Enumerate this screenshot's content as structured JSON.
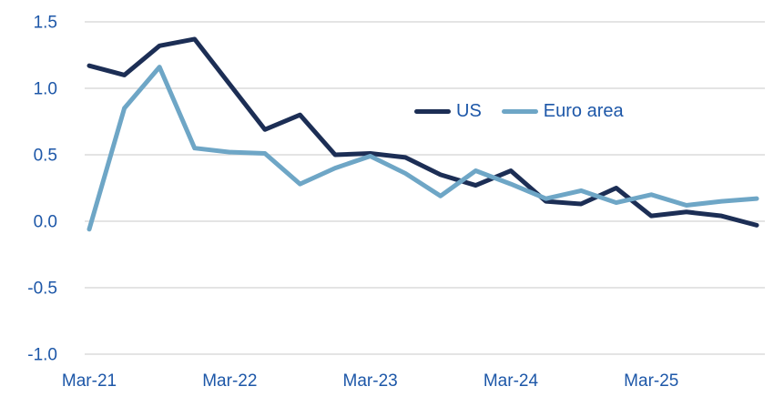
{
  "chart_data": {
    "type": "line",
    "title": "",
    "xlabel": "",
    "ylabel": "",
    "categories": [
      "Mar-21",
      "Jun-21",
      "Sep-21",
      "Dec-21",
      "Mar-22",
      "Jun-22",
      "Sep-22",
      "Dec-22",
      "Mar-23",
      "Jun-23",
      "Sep-23",
      "Dec-23",
      "Mar-24",
      "Jun-24",
      "Sep-24",
      "Dec-24",
      "Mar-25",
      "Jun-25",
      "Sep-25",
      "Dec-25"
    ],
    "x_axis": {
      "visible_tick_labels": [
        "Mar-21",
        "Mar-22",
        "Mar-23",
        "Mar-24",
        "Mar-25"
      ],
      "tick_every": 4
    },
    "y_axis": {
      "ticks": [
        1.5,
        1.0,
        0.5,
        0.0,
        -0.5,
        -1.0
      ],
      "tick_labels": [
        "1.5",
        "1.0",
        "0.5",
        "0.0",
        "-0.5",
        "-1.0"
      ],
      "range": [
        -1.0,
        1.5
      ]
    },
    "grid": {
      "horizontal": true,
      "vertical": false,
      "color": "#dcdcdc"
    },
    "legend": {
      "position": "inside-upper-right",
      "items": [
        "US",
        "Euro area"
      ]
    },
    "series": [
      {
        "name": "US",
        "color": "#1c2e55",
        "values": [
          1.17,
          1.1,
          1.32,
          1.37,
          1.03,
          0.69,
          0.8,
          0.5,
          0.51,
          0.48,
          0.35,
          0.27,
          0.38,
          0.15,
          0.13,
          0.25,
          0.04,
          0.07,
          0.04,
          -0.03
        ]
      },
      {
        "name": "Euro area",
        "color": "#6ea6c6",
        "values": [
          -0.06,
          0.85,
          1.16,
          0.55,
          0.52,
          0.51,
          0.28,
          0.4,
          0.49,
          0.36,
          0.19,
          0.38,
          0.28,
          0.17,
          0.23,
          0.14,
          0.2,
          0.12,
          0.15,
          0.17
        ]
      }
    ],
    "axis_label_color": "#1d57a8",
    "line_width": 5
  }
}
